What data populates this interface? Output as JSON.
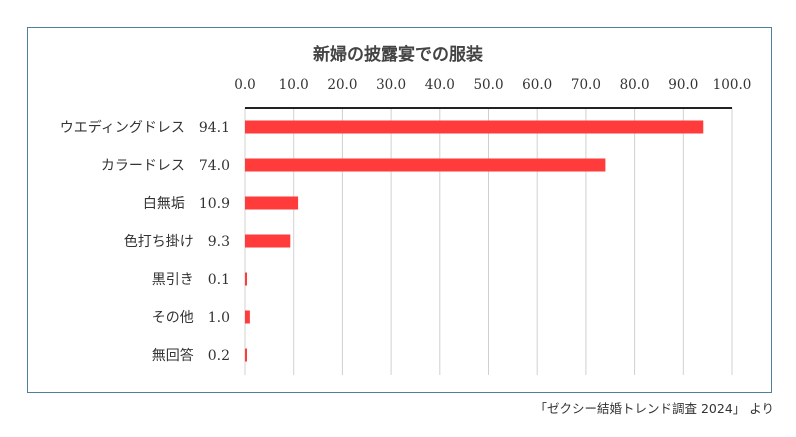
{
  "chart_data": {
    "type": "bar",
    "orientation": "horizontal",
    "title": "新婦の披露宴での服装",
    "categories": [
      "ウエディングドレス",
      "カラードレス",
      "白無垢",
      "色打ち掛け",
      "黒引き",
      "その他",
      "無回答"
    ],
    "values": [
      94.1,
      74.0,
      10.9,
      9.3,
      0.1,
      1.0,
      0.2
    ],
    "value_labels": [
      "94.1",
      "74.0",
      "10.9",
      "9.3",
      "0.1",
      "1.0",
      "0.2"
    ],
    "xlim": [
      0,
      100
    ],
    "xticks": [
      "0.0",
      "10.0",
      "20.0",
      "30.0",
      "40.0",
      "50.0",
      "60.0",
      "70.0",
      "80.0",
      "90.0",
      "100.0"
    ],
    "grid": true,
    "axis_position": "top",
    "bar_color": "#ff3b3b"
  },
  "source": "「ゼクシー結婚トレンド調査 2024」 より"
}
